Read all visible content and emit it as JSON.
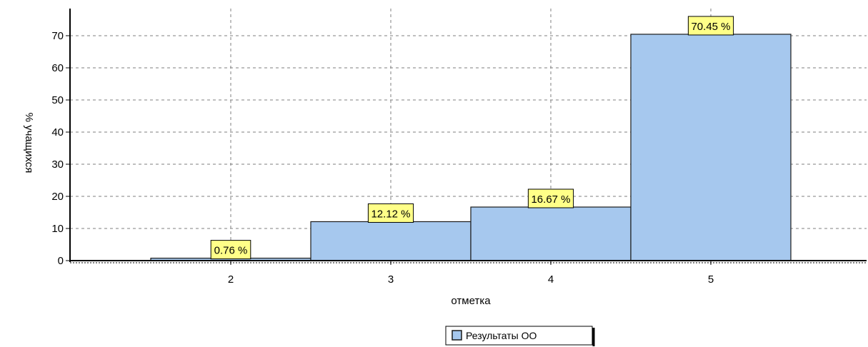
{
  "chart_data": {
    "type": "bar",
    "title": "",
    "xlabel": "отметка",
    "ylabel": "% учащихся",
    "categories": [
      "2",
      "3",
      "4",
      "5"
    ],
    "series": [
      {
        "name": "Результаты ОО",
        "values": [
          0.76,
          12.12,
          16.67,
          70.45
        ]
      }
    ],
    "data_labels": [
      "0.76 %",
      "12.12 %",
      "16.67 %",
      "70.45 %"
    ],
    "ylim": [
      0,
      78
    ],
    "y_ticks": [
      0,
      10,
      20,
      30,
      40,
      50,
      60,
      70
    ],
    "grid": true,
    "legend_position": "bottom-center"
  },
  "colors": {
    "bar_fill": "#a6c8ee",
    "bar_stroke": "#1a1a1a",
    "label_fill": "#ffff88",
    "grid": "#7f7f7f",
    "axis": "#000000"
  }
}
